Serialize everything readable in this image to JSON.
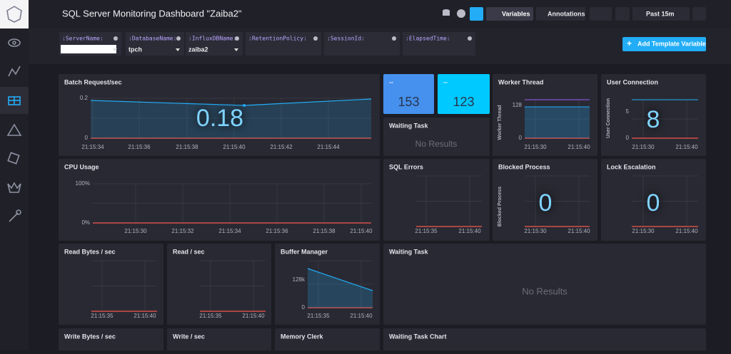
{
  "header": {
    "title": "SQL Server Monitoring Dashboard \"Zaiba2\"",
    "buttons": [
      "Variables",
      "Annotations",
      "Past 15m"
    ]
  },
  "template_variables": [
    {
      "name": ":ServerName:"
    },
    {
      "name": ":DatabaseName:",
      "value": "tpch"
    },
    {
      "name": ":InfluxDBName:",
      "value": "zaiba2"
    },
    {
      "name": ":RetentionPolicy:"
    },
    {
      "name": ":SessionId:"
    },
    {
      "name": ":ElapsedTime:"
    }
  ],
  "add_button": "Add Template Variable",
  "cells": [
    {
      "title": "Batch Request/sec",
      "big_value": "0.18",
      "y_ticks": [
        "0.2",
        "0"
      ],
      "x_ticks": [
        "21:15:34",
        "21:15:36",
        "21:15:38",
        "21:15:40",
        "21:15:42",
        "21:15:44"
      ]
    },
    {
      "title": "--",
      "stat": "153"
    },
    {
      "title": "--",
      "stat": "123"
    },
    {
      "title": "Waiting Task",
      "message": "No Results"
    },
    {
      "title": "Worker Thread",
      "y_label": "Worker Thread",
      "y_ticks": [
        "128",
        "0"
      ],
      "x_ticks": [
        "21:15:30",
        "21:15:40"
      ]
    },
    {
      "title": "User Connection",
      "y_label": "User Connection",
      "big_value": "8",
      "y_ticks": [
        "5",
        "0"
      ],
      "x_ticks": [
        "21:15:30",
        "21:15:40"
      ]
    },
    {
      "title": "CPU Usage",
      "y_ticks": [
        "100%",
        "0%"
      ],
      "x_ticks": [
        "21:15:30",
        "21:15:32",
        "21:15:34",
        "21:15:36",
        "21:15:38",
        "21:15:40"
      ]
    },
    {
      "title": "SQL Errors",
      "x_ticks": [
        "21:15:35",
        "21:15:40"
      ]
    },
    {
      "title": "Blocked Process",
      "y_label": "Blocked Process",
      "big_value": "0",
      "x_ticks": [
        "21:15:30",
        "21:15:40"
      ]
    },
    {
      "title": "Lock Escalation",
      "big_value": "0",
      "x_ticks": [
        "21:15:30",
        "21:15:40"
      ]
    },
    {
      "title": "Read Bytes / sec",
      "x_ticks": [
        "21:15:35",
        "21:15:40"
      ]
    },
    {
      "title": "Read / sec",
      "x_ticks": [
        "21:15:35",
        "21:15:40"
      ]
    },
    {
      "title": "Buffer Manager",
      "y_ticks": [
        "128k",
        "0"
      ],
      "x_ticks": [
        "21:15:35",
        "21:15:40"
      ]
    },
    {
      "title": "Waiting Task",
      "message": "No Results"
    },
    {
      "title": "Write Bytes / sec"
    },
    {
      "title": "Write / sec"
    },
    {
      "title": "Memory Clerk"
    },
    {
      "title": "Waiting Task Chart"
    }
  ]
}
